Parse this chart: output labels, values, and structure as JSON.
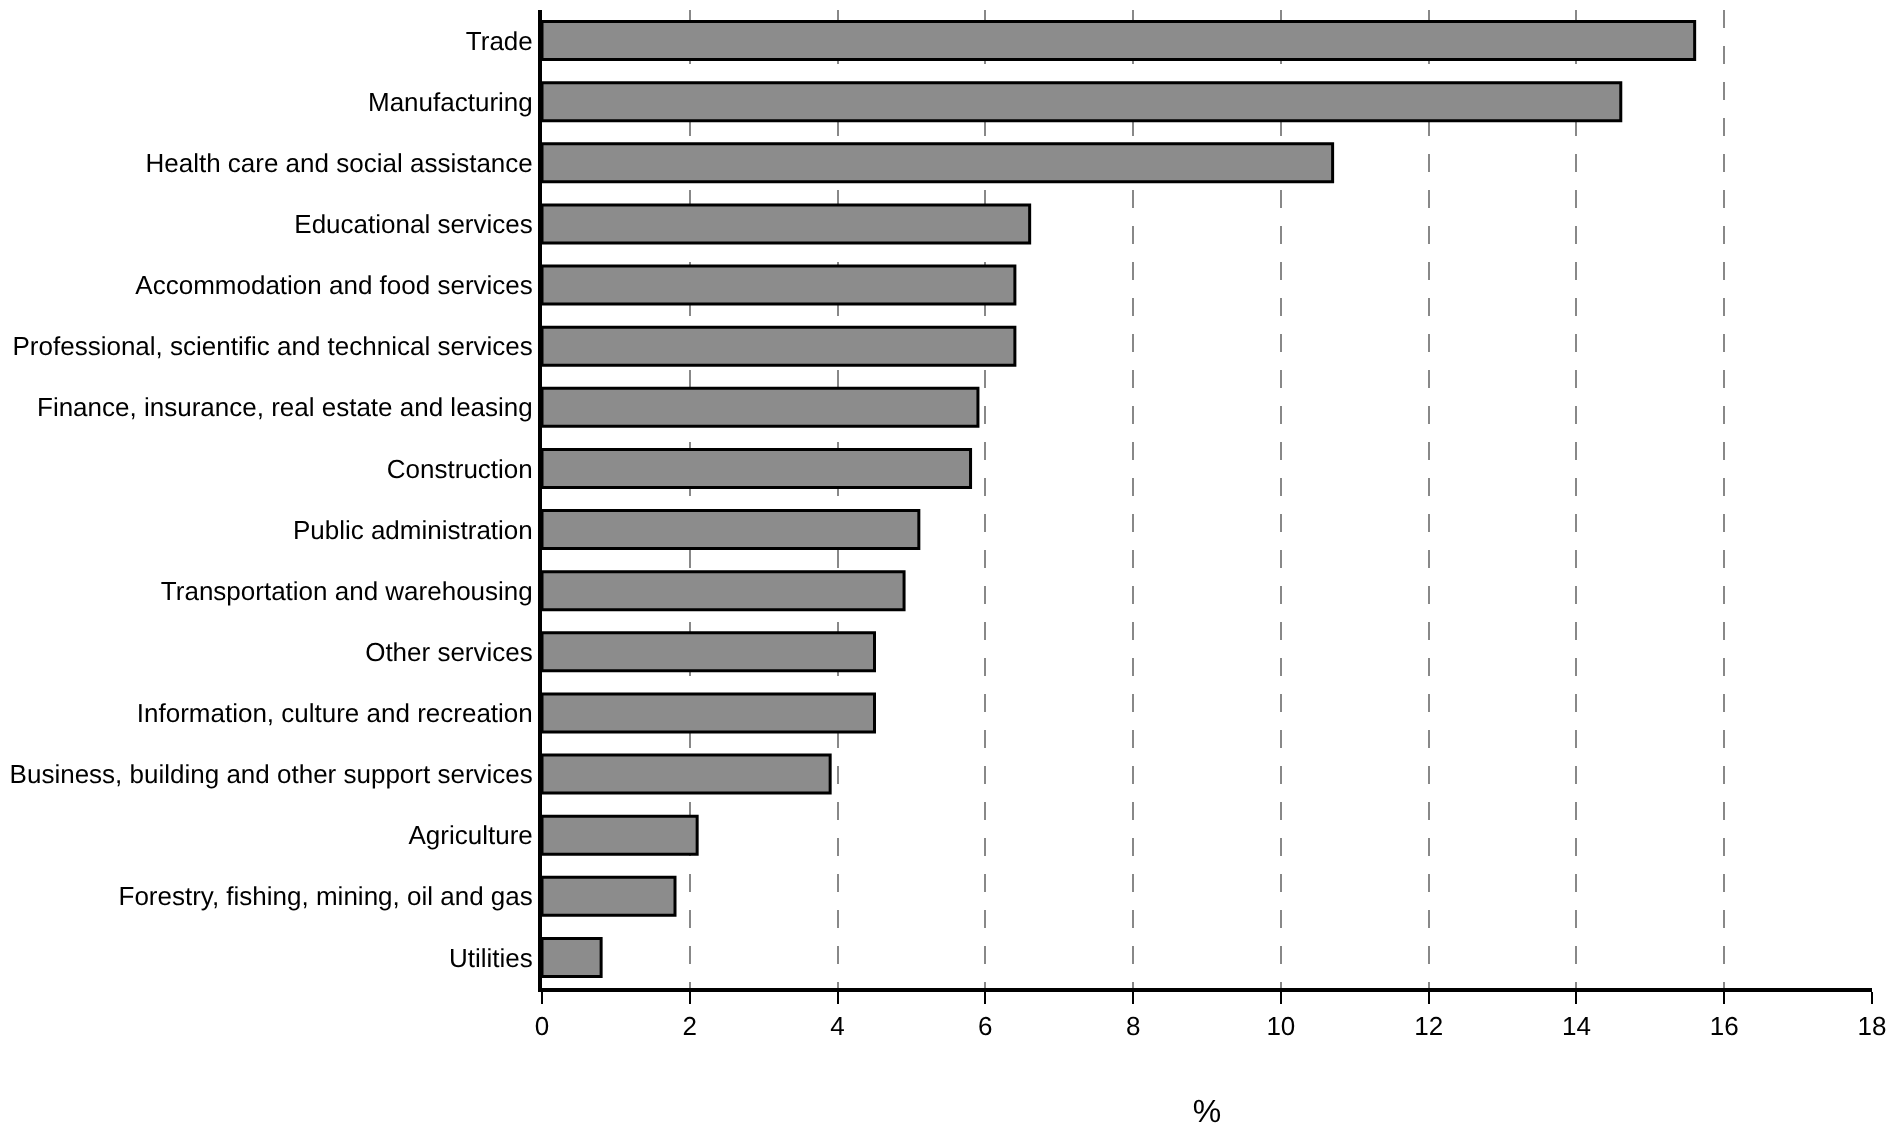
{
  "chart_data": {
    "type": "bar",
    "orientation": "horizontal",
    "xlabel": "%",
    "categories": [
      "Trade",
      "Manufacturing",
      "Health care and social assistance",
      "Educational services",
      "Accommodation and food services",
      "Professional, scientific and technical services",
      "Finance, insurance, real estate and leasing",
      "Construction",
      "Public administration",
      "Transportation and warehousing",
      "Other services",
      "Information, culture and recreation",
      "Business, building and other support services",
      "Agriculture",
      "Forestry, fishing, mining, oil and gas",
      "Utilities"
    ],
    "values": [
      15.6,
      14.6,
      10.7,
      6.6,
      6.4,
      6.4,
      5.9,
      5.8,
      5.1,
      4.9,
      4.5,
      4.5,
      3.9,
      2.1,
      1.8,
      0.8
    ],
    "color": "#8c8c8c",
    "xlim": [
      0,
      18
    ],
    "xticks": [
      0,
      2,
      4,
      6,
      8,
      10,
      12,
      14,
      16,
      18
    ],
    "grid": "x"
  }
}
